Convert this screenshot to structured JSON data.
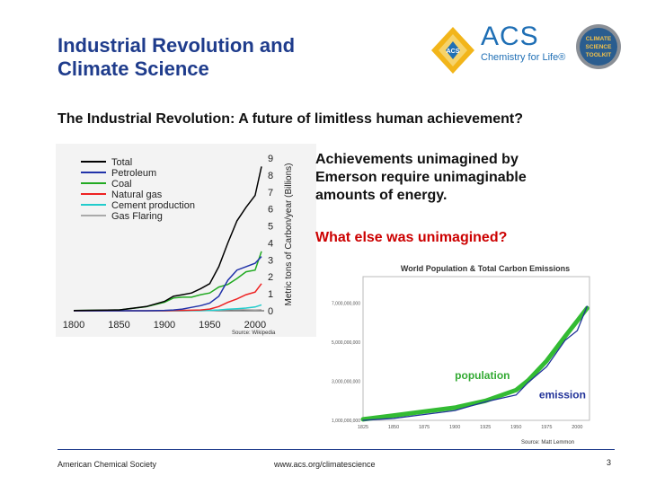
{
  "slide": {
    "title_line1": "Industrial Revolution and",
    "title_line2": "Climate Science",
    "subtitle": "The Industrial Revolution: A future of limitless human achievement?",
    "achievements_line1": "Achievements unimagined by",
    "achievements_line2": "Emerson require unimaginable",
    "achievements_line3": "amounts of energy.",
    "question": "What else was unimagined?",
    "page_number": "3"
  },
  "logos": {
    "acs_name": "ACS",
    "acs_tagline": "Chemistry for Life®",
    "acs_emblem_letters": "ACS",
    "toolkit_lines": [
      "CLIMATE",
      "SCIENCE",
      "TOOLKIT"
    ]
  },
  "footer": {
    "left": "American Chemical Society",
    "center": "www.acs.org/climatescience"
  },
  "chart_data": [
    {
      "type": "line",
      "source": "Source: Wikipedia",
      "ylabel": "Metric tons of Carbon/year (Billions)",
      "xlim": [
        1800,
        2010
      ],
      "ylim": [
        0,
        9
      ],
      "x_ticks": [
        "1800",
        "1850",
        "1900",
        "1950",
        "2000"
      ],
      "y_ticks": [
        "0",
        "1",
        "2",
        "3",
        "4",
        "5",
        "6",
        "7",
        "8",
        "9"
      ],
      "legend_position": "top-left",
      "x": [
        1800,
        1850,
        1880,
        1900,
        1910,
        1920,
        1930,
        1940,
        1950,
        1960,
        1970,
        1980,
        1990,
        2000,
        2007
      ],
      "series": [
        {
          "name": "Total",
          "color": "#000000",
          "values": [
            0.01,
            0.05,
            0.25,
            0.55,
            0.85,
            0.95,
            1.05,
            1.3,
            1.6,
            2.6,
            4.0,
            5.3,
            6.1,
            6.8,
            8.5
          ]
        },
        {
          "name": "Petroleum",
          "color": "#2233aa",
          "values": [
            0,
            0,
            0,
            0.02,
            0.05,
            0.1,
            0.2,
            0.3,
            0.45,
            0.85,
            1.8,
            2.4,
            2.6,
            2.8,
            3.2
          ]
        },
        {
          "name": "Coal",
          "color": "#22aa22",
          "values": [
            0.01,
            0.05,
            0.24,
            0.5,
            0.75,
            0.8,
            0.8,
            0.95,
            1.05,
            1.4,
            1.55,
            1.9,
            2.3,
            2.4,
            3.5
          ]
        },
        {
          "name": "Natural gas",
          "color": "#ee2222",
          "values": [
            0,
            0,
            0,
            0,
            0.01,
            0.02,
            0.03,
            0.05,
            0.1,
            0.25,
            0.5,
            0.7,
            0.95,
            1.1,
            1.6
          ]
        },
        {
          "name": "Cement production",
          "color": "#22cccc",
          "values": [
            0,
            0,
            0,
            0,
            0,
            0,
            0.01,
            0.01,
            0.02,
            0.05,
            0.09,
            0.12,
            0.16,
            0.22,
            0.35
          ]
        },
        {
          "name": "Gas Flaring",
          "color": "#aaaaaa",
          "values": [
            0,
            0,
            0,
            0,
            0,
            0,
            0,
            0,
            0.02,
            0.04,
            0.06,
            0.08,
            0.06,
            0.05,
            0.06
          ]
        }
      ]
    },
    {
      "type": "line",
      "title": "World Population & Total Carbon Emissions",
      "source": "Source: Matt Lemmon",
      "xlim": [
        1825,
        2010
      ],
      "ylim": [
        1000000000,
        8000000000
      ],
      "x_ticks": [
        "1825",
        "1850",
        "1875",
        "1900",
        "1925",
        "1950",
        "1975",
        "2000"
      ],
      "y_ticks": [
        "1,000,000,000",
        "3,000,000,000",
        "5,000,000,000",
        "7,000,000,000"
      ],
      "x": [
        1825,
        1850,
        1875,
        1900,
        1925,
        1950,
        1960,
        1975,
        1990,
        2000,
        2008
      ],
      "series": [
        {
          "name": "population",
          "color": "#33bb33",
          "values": [
            1050000000,
            1250000000,
            1450000000,
            1650000000,
            2000000000,
            2550000000,
            3050000000,
            4050000000,
            5300000000,
            6100000000,
            6750000000
          ]
        },
        {
          "name": "emission",
          "color": "#223399",
          "values": [
            1000000000,
            1100000000,
            1300000000,
            1500000000,
            1950000000,
            2300000000,
            2950000000,
            3750000000,
            5100000000,
            5600000000,
            6850000000
          ]
        }
      ]
    }
  ]
}
